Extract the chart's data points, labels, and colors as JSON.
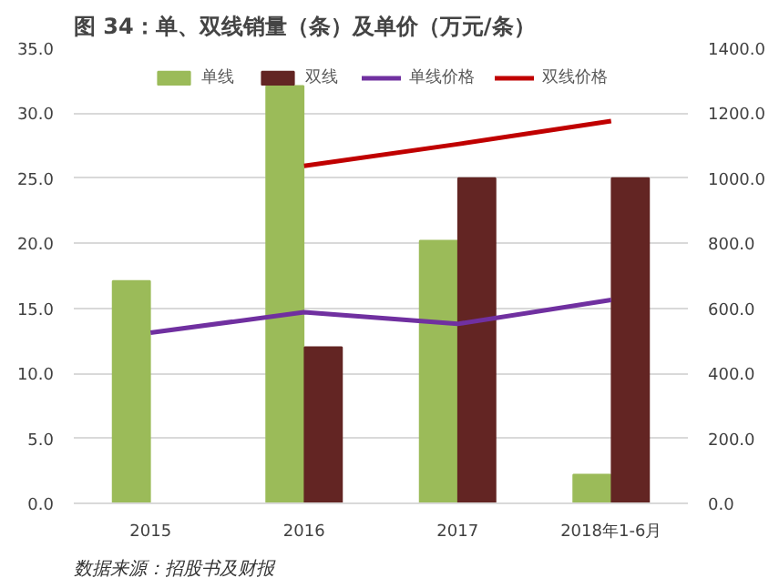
{
  "chart_data": {
    "type": "bar",
    "title": "图 34：单、双线销量（条）及单价（万元/条）",
    "categories": [
      "2015",
      "2016",
      "2017",
      "2018年1-6月"
    ],
    "series": [
      {
        "name": "单线",
        "color": "#9bbb59",
        "values": [
          17.1,
          32.1,
          20.2,
          2.2
        ]
      },
      {
        "name": "双线",
        "color": "#632523",
        "values": [
          null,
          12.0,
          25.0,
          25.0
        ]
      },
      {
        "name": "单线价格",
        "type": "line",
        "axis": "y2",
        "color": "#7030a0",
        "values": [
          525,
          588,
          552,
          626
        ]
      },
      {
        "name": "双线价格",
        "type": "line",
        "axis": "y2",
        "color": "#c00000",
        "values": [
          null,
          1038,
          1105,
          1176
        ]
      }
    ],
    "ylim": [
      0,
      35
    ],
    "yticks": [
      {
        "value": 0,
        "label": "0.0"
      },
      {
        "value": 5,
        "label": "5.0"
      },
      {
        "value": 10,
        "label": "10.0"
      },
      {
        "value": 15,
        "label": "15.0"
      },
      {
        "value": 20,
        "label": "20.0"
      },
      {
        "value": 25,
        "label": "25.0"
      },
      {
        "value": 30,
        "label": "30.0"
      },
      {
        "value": 35,
        "label": "35.0"
      }
    ],
    "y2lim": [
      0,
      1400
    ],
    "y2ticks": [
      {
        "value": 0,
        "label": "0.0"
      },
      {
        "value": 200,
        "label": "200.0"
      },
      {
        "value": 400,
        "label": "400.0"
      },
      {
        "value": 600,
        "label": "600.0"
      },
      {
        "value": 800,
        "label": "800.0"
      },
      {
        "value": 1000,
        "label": "1000.0"
      },
      {
        "value": 1200,
        "label": "1200.0"
      },
      {
        "value": 1400,
        "label": "1400.0"
      }
    ],
    "grid": "y",
    "legend": "top",
    "annotations": [
      "数据来源：招股书及财报"
    ]
  }
}
